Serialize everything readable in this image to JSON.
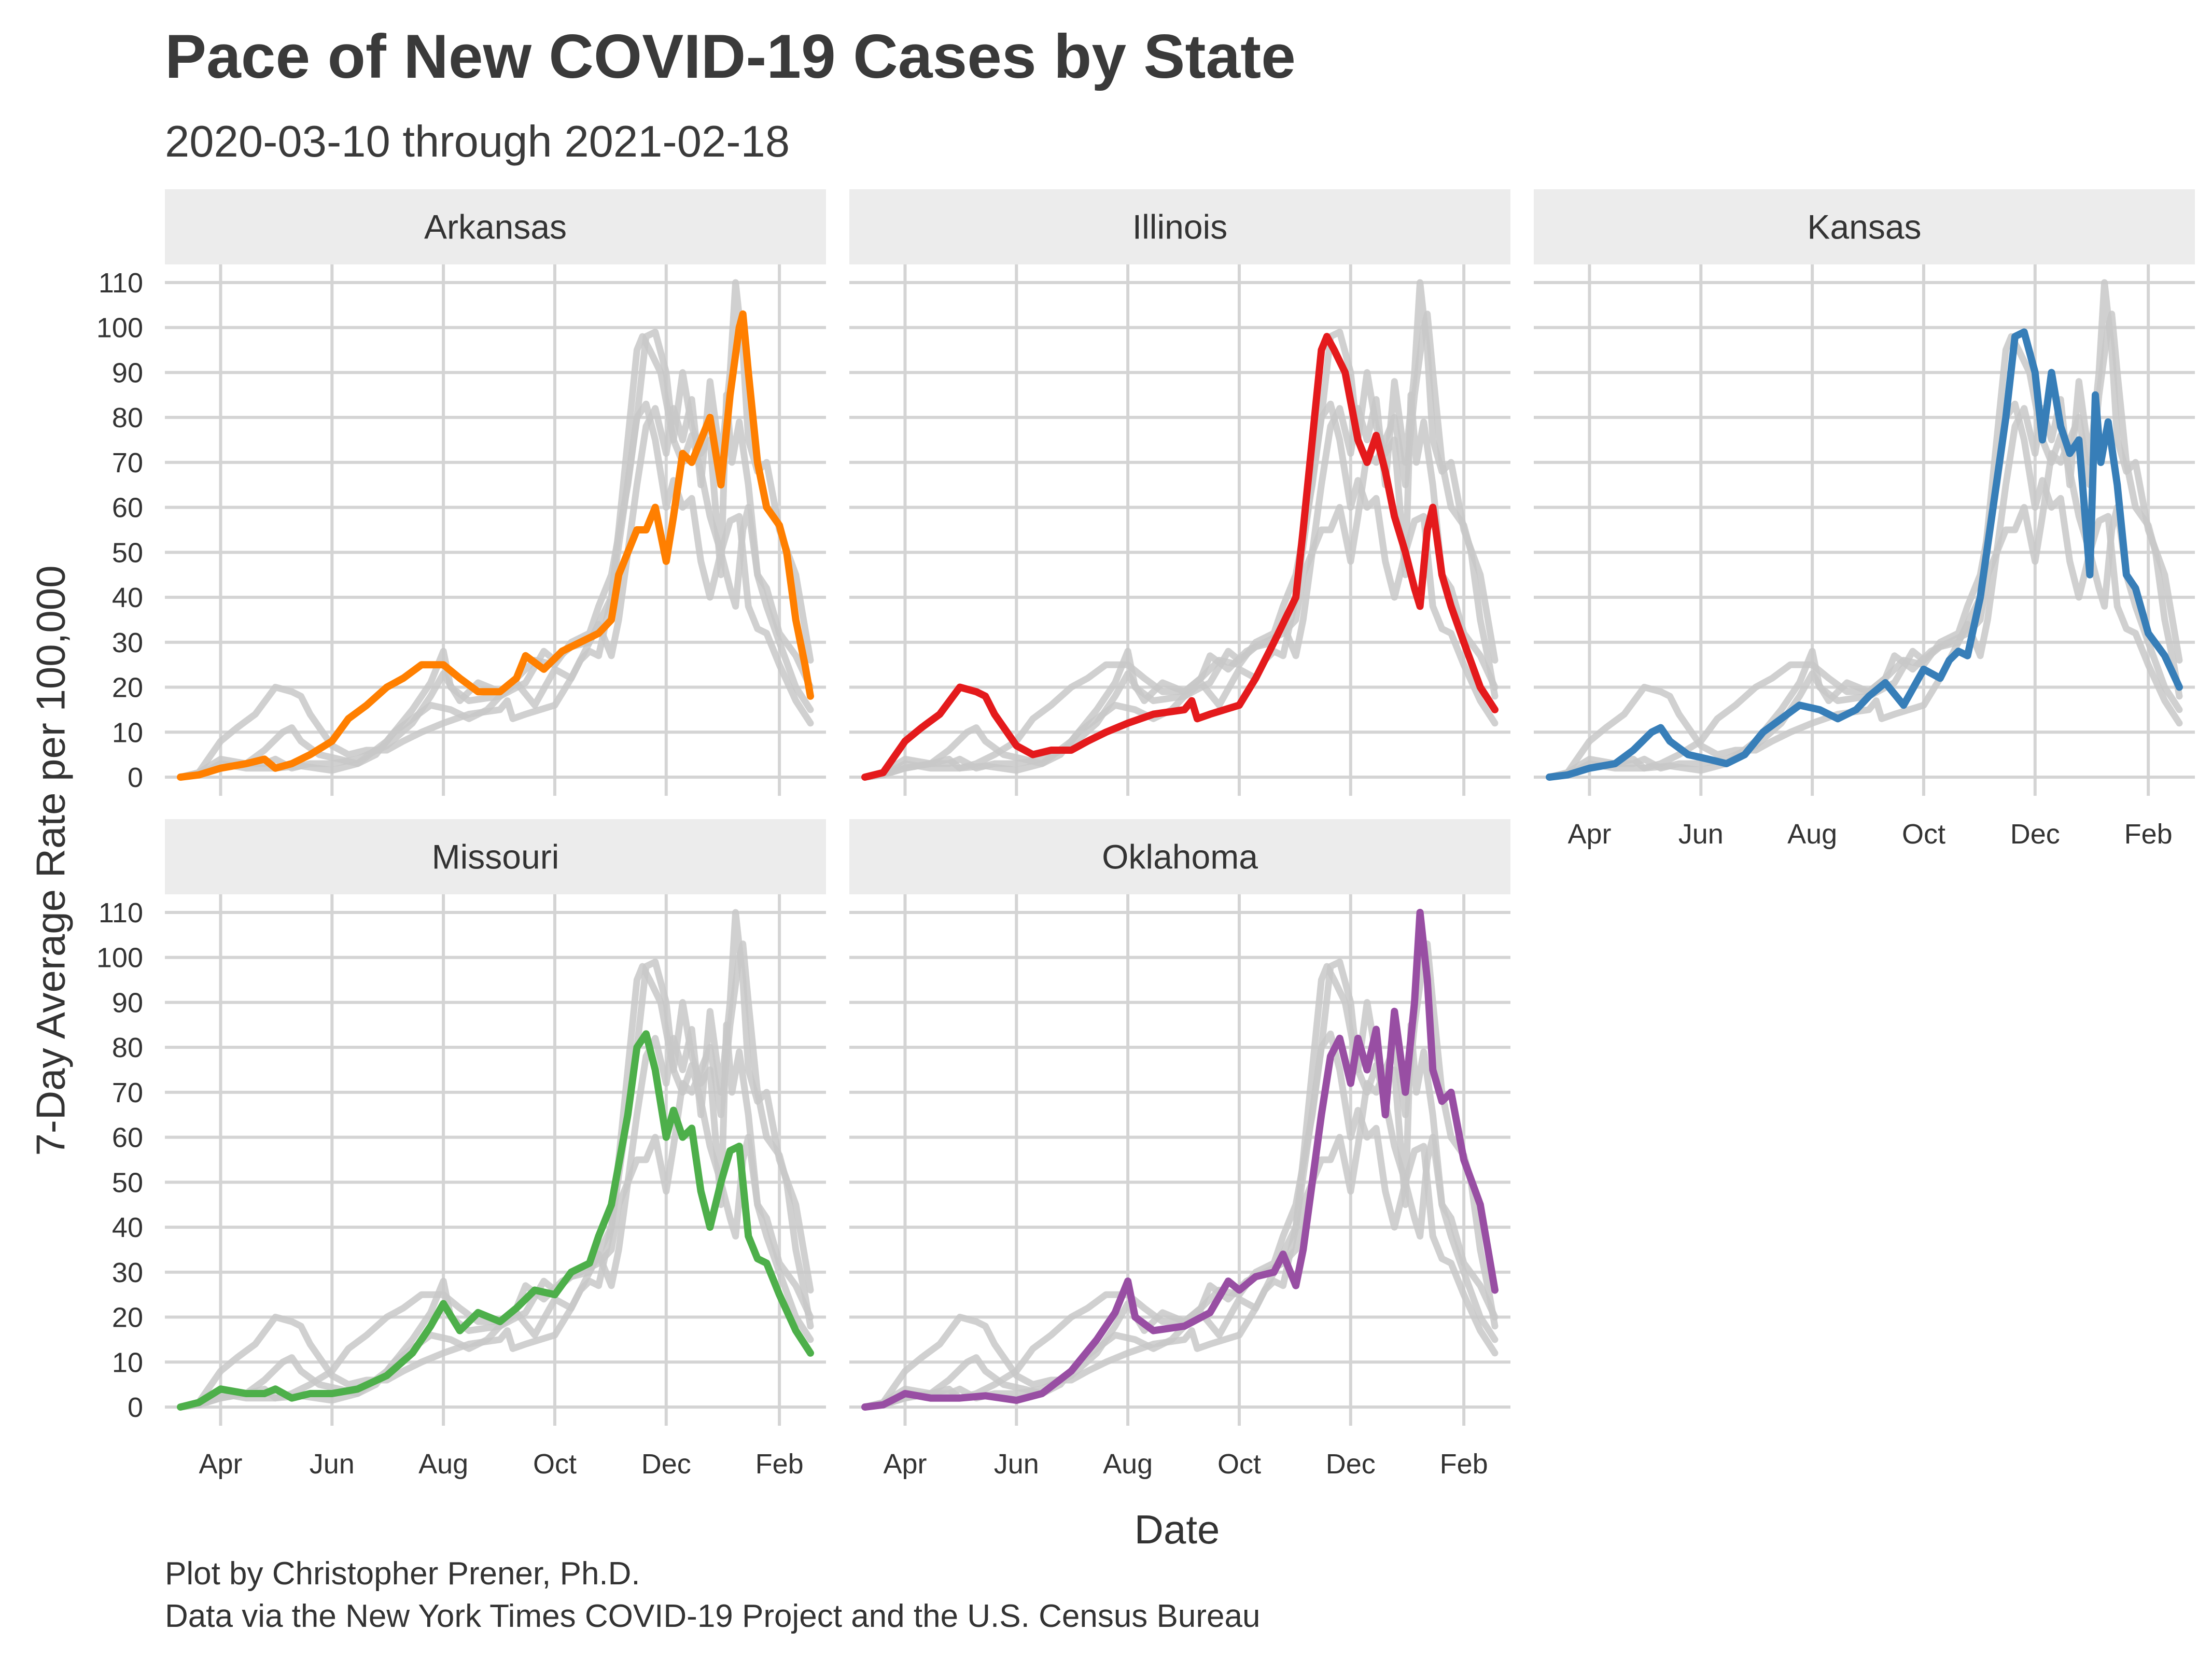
{
  "chart_data": {
    "type": "line",
    "title": "Pace of New COVID-19 Cases by State",
    "subtitle": "2020-03-10 through 2021-02-18",
    "xlabel": "Date",
    "ylabel": "7-Day Average Rate per 100,000",
    "caption_lines": [
      "Plot by Christopher Prener, Ph.D.",
      "Data via the New York Times COVID-19 Project and the U.S. Census Bureau"
    ],
    "x_ticks": [
      "Apr",
      "Jun",
      "Aug",
      "Oct",
      "Dec",
      "Feb"
    ],
    "x_tick_dates": [
      "2020-04-01",
      "2020-06-01",
      "2020-08-01",
      "2020-10-01",
      "2020-12-01",
      "2021-02-01"
    ],
    "xlim": [
      "2020-03-10",
      "2021-02-18"
    ],
    "y_ticks": [
      0,
      10,
      20,
      30,
      40,
      50,
      60,
      70,
      80,
      90,
      100,
      110
    ],
    "ylim": [
      0,
      110
    ],
    "grid": true,
    "facet_layout": "3 columns x 2 rows, faceted by state",
    "background_series_color": "#c8c8c8",
    "series": [
      {
        "name": "Arkansas",
        "color": "#FF7F00",
        "points": [
          [
            "2020-03-10",
            0
          ],
          [
            "2020-03-20",
            0.5
          ],
          [
            "2020-04-01",
            2
          ],
          [
            "2020-04-15",
            3
          ],
          [
            "2020-04-25",
            4
          ],
          [
            "2020-05-01",
            2
          ],
          [
            "2020-05-10",
            3
          ],
          [
            "2020-05-20",
            5
          ],
          [
            "2020-06-01",
            8
          ],
          [
            "2020-06-10",
            13
          ],
          [
            "2020-06-20",
            16
          ],
          [
            "2020-07-01",
            20
          ],
          [
            "2020-07-10",
            22
          ],
          [
            "2020-07-20",
            25
          ],
          [
            "2020-08-01",
            25
          ],
          [
            "2020-08-10",
            22
          ],
          [
            "2020-08-20",
            19
          ],
          [
            "2020-09-01",
            19
          ],
          [
            "2020-09-10",
            22
          ],
          [
            "2020-09-15",
            27
          ],
          [
            "2020-09-25",
            24
          ],
          [
            "2020-10-05",
            28
          ],
          [
            "2020-10-15",
            30
          ],
          [
            "2020-10-25",
            32
          ],
          [
            "2020-11-01",
            35
          ],
          [
            "2020-11-05",
            45
          ],
          [
            "2020-11-10",
            50
          ],
          [
            "2020-11-15",
            55
          ],
          [
            "2020-11-20",
            55
          ],
          [
            "2020-11-25",
            60
          ],
          [
            "2020-12-01",
            48
          ],
          [
            "2020-12-05",
            58
          ],
          [
            "2020-12-10",
            72
          ],
          [
            "2020-12-15",
            70
          ],
          [
            "2020-12-20",
            75
          ],
          [
            "2020-12-25",
            80
          ],
          [
            "2020-12-31",
            65
          ],
          [
            "2021-01-05",
            85
          ],
          [
            "2021-01-10",
            100
          ],
          [
            "2021-01-12",
            103
          ],
          [
            "2021-01-15",
            90
          ],
          [
            "2021-01-20",
            70
          ],
          [
            "2021-01-25",
            60
          ],
          [
            "2021-02-01",
            56
          ],
          [
            "2021-02-05",
            50
          ],
          [
            "2021-02-10",
            35
          ],
          [
            "2021-02-15",
            25
          ],
          [
            "2021-02-18",
            18
          ]
        ]
      },
      {
        "name": "Illinois",
        "color": "#E41A1C",
        "points": [
          [
            "2020-03-10",
            0
          ],
          [
            "2020-03-20",
            1
          ],
          [
            "2020-04-01",
            8
          ],
          [
            "2020-04-10",
            11
          ],
          [
            "2020-04-20",
            14
          ],
          [
            "2020-05-01",
            20
          ],
          [
            "2020-05-10",
            19
          ],
          [
            "2020-05-15",
            18
          ],
          [
            "2020-05-20",
            14
          ],
          [
            "2020-06-01",
            7
          ],
          [
            "2020-06-10",
            5
          ],
          [
            "2020-06-20",
            6
          ],
          [
            "2020-07-01",
            6
          ],
          [
            "2020-07-10",
            8
          ],
          [
            "2020-07-20",
            10
          ],
          [
            "2020-08-01",
            12
          ],
          [
            "2020-08-15",
            14
          ],
          [
            "2020-09-01",
            15
          ],
          [
            "2020-09-05",
            17
          ],
          [
            "2020-09-08",
            13
          ],
          [
            "2020-09-15",
            14
          ],
          [
            "2020-10-01",
            16
          ],
          [
            "2020-10-10",
            22
          ],
          [
            "2020-10-20",
            30
          ],
          [
            "2020-11-01",
            40
          ],
          [
            "2020-11-05",
            55
          ],
          [
            "2020-11-10",
            75
          ],
          [
            "2020-11-15",
            95
          ],
          [
            "2020-11-18",
            98
          ],
          [
            "2020-11-22",
            95
          ],
          [
            "2020-11-28",
            90
          ],
          [
            "2020-12-05",
            75
          ],
          [
            "2020-12-10",
            70
          ],
          [
            "2020-12-15",
            76
          ],
          [
            "2020-12-20",
            68
          ],
          [
            "2020-12-25",
            58
          ],
          [
            "2020-12-31",
            50
          ],
          [
            "2021-01-05",
            42
          ],
          [
            "2021-01-08",
            38
          ],
          [
            "2021-01-12",
            55
          ],
          [
            "2021-01-15",
            60
          ],
          [
            "2021-01-20",
            45
          ],
          [
            "2021-01-25",
            38
          ],
          [
            "2021-02-01",
            30
          ],
          [
            "2021-02-10",
            20
          ],
          [
            "2021-02-18",
            15
          ]
        ]
      },
      {
        "name": "Kansas",
        "color": "#377EB8",
        "points": [
          [
            "2020-03-10",
            0
          ],
          [
            "2020-03-20",
            0.5
          ],
          [
            "2020-04-01",
            2
          ],
          [
            "2020-04-15",
            3
          ],
          [
            "2020-04-25",
            6
          ],
          [
            "2020-05-05",
            10
          ],
          [
            "2020-05-10",
            11
          ],
          [
            "2020-05-15",
            8
          ],
          [
            "2020-05-25",
            5
          ],
          [
            "2020-06-05",
            4
          ],
          [
            "2020-06-15",
            3
          ],
          [
            "2020-06-25",
            5
          ],
          [
            "2020-07-05",
            10
          ],
          [
            "2020-07-15",
            13
          ],
          [
            "2020-07-25",
            16
          ],
          [
            "2020-08-05",
            15
          ],
          [
            "2020-08-15",
            13
          ],
          [
            "2020-08-25",
            15
          ],
          [
            "2020-09-01",
            18
          ],
          [
            "2020-09-10",
            21
          ],
          [
            "2020-09-20",
            16
          ],
          [
            "2020-10-01",
            24
          ],
          [
            "2020-10-10",
            22
          ],
          [
            "2020-10-15",
            26
          ],
          [
            "2020-10-20",
            28
          ],
          [
            "2020-10-25",
            27
          ],
          [
            "2020-11-01",
            40
          ],
          [
            "2020-11-08",
            60
          ],
          [
            "2020-11-15",
            80
          ],
          [
            "2020-11-20",
            98
          ],
          [
            "2020-11-25",
            99
          ],
          [
            "2020-12-01",
            90
          ],
          [
            "2020-12-05",
            75
          ],
          [
            "2020-12-10",
            90
          ],
          [
            "2020-12-15",
            78
          ],
          [
            "2020-12-20",
            72
          ],
          [
            "2020-12-25",
            75
          ],
          [
            "2020-12-31",
            45
          ],
          [
            "2021-01-03",
            85
          ],
          [
            "2021-01-06",
            70
          ],
          [
            "2021-01-10",
            79
          ],
          [
            "2021-01-15",
            65
          ],
          [
            "2021-01-20",
            45
          ],
          [
            "2021-01-25",
            42
          ],
          [
            "2021-02-01",
            32
          ],
          [
            "2021-02-10",
            27
          ],
          [
            "2021-02-18",
            20
          ]
        ]
      },
      {
        "name": "Missouri",
        "color": "#4DAF4A",
        "points": [
          [
            "2020-03-10",
            0
          ],
          [
            "2020-03-20",
            1
          ],
          [
            "2020-04-01",
            4
          ],
          [
            "2020-04-15",
            3
          ],
          [
            "2020-04-25",
            3
          ],
          [
            "2020-05-01",
            4
          ],
          [
            "2020-05-10",
            2
          ],
          [
            "2020-05-20",
            3
          ],
          [
            "2020-06-01",
            3
          ],
          [
            "2020-06-15",
            4
          ],
          [
            "2020-07-01",
            7
          ],
          [
            "2020-07-15",
            12
          ],
          [
            "2020-07-25",
            18
          ],
          [
            "2020-08-01",
            23
          ],
          [
            "2020-08-10",
            17
          ],
          [
            "2020-08-20",
            21
          ],
          [
            "2020-09-01",
            19
          ],
          [
            "2020-09-10",
            22
          ],
          [
            "2020-09-20",
            26
          ],
          [
            "2020-10-01",
            25
          ],
          [
            "2020-10-10",
            30
          ],
          [
            "2020-10-20",
            32
          ],
          [
            "2020-10-25",
            38
          ],
          [
            "2020-11-01",
            45
          ],
          [
            "2020-11-10",
            65
          ],
          [
            "2020-11-15",
            80
          ],
          [
            "2020-11-20",
            83
          ],
          [
            "2020-11-25",
            75
          ],
          [
            "2020-12-01",
            60
          ],
          [
            "2020-12-05",
            66
          ],
          [
            "2020-12-10",
            60
          ],
          [
            "2020-12-15",
            62
          ],
          [
            "2020-12-20",
            48
          ],
          [
            "2020-12-25",
            40
          ],
          [
            "2020-12-31",
            50
          ],
          [
            "2021-01-05",
            57
          ],
          [
            "2021-01-10",
            58
          ],
          [
            "2021-01-15",
            38
          ],
          [
            "2021-01-20",
            33
          ],
          [
            "2021-01-25",
            32
          ],
          [
            "2021-02-01",
            25
          ],
          [
            "2021-02-10",
            17
          ],
          [
            "2021-02-18",
            12
          ]
        ]
      },
      {
        "name": "Oklahoma",
        "color": "#984EA3",
        "points": [
          [
            "2020-03-10",
            0
          ],
          [
            "2020-03-20",
            0.5
          ],
          [
            "2020-04-01",
            3
          ],
          [
            "2020-04-15",
            2
          ],
          [
            "2020-05-01",
            2
          ],
          [
            "2020-05-15",
            2.5
          ],
          [
            "2020-06-01",
            1.5
          ],
          [
            "2020-06-15",
            3
          ],
          [
            "2020-07-01",
            8
          ],
          [
            "2020-07-15",
            15
          ],
          [
            "2020-07-25",
            21
          ],
          [
            "2020-08-01",
            28
          ],
          [
            "2020-08-05",
            20
          ],
          [
            "2020-08-15",
            17
          ],
          [
            "2020-09-01",
            18
          ],
          [
            "2020-09-15",
            21
          ],
          [
            "2020-09-25",
            28
          ],
          [
            "2020-10-01",
            26
          ],
          [
            "2020-10-10",
            29
          ],
          [
            "2020-10-20",
            30
          ],
          [
            "2020-10-25",
            34
          ],
          [
            "2020-11-01",
            27
          ],
          [
            "2020-11-05",
            35
          ],
          [
            "2020-11-10",
            50
          ],
          [
            "2020-11-15",
            65
          ],
          [
            "2020-11-20",
            78
          ],
          [
            "2020-11-25",
            82
          ],
          [
            "2020-12-01",
            72
          ],
          [
            "2020-12-05",
            82
          ],
          [
            "2020-12-10",
            75
          ],
          [
            "2020-12-15",
            84
          ],
          [
            "2020-12-20",
            65
          ],
          [
            "2020-12-25",
            88
          ],
          [
            "2020-12-31",
            70
          ],
          [
            "2021-01-05",
            90
          ],
          [
            "2021-01-08",
            110
          ],
          [
            "2021-01-12",
            95
          ],
          [
            "2021-01-15",
            75
          ],
          [
            "2021-01-20",
            68
          ],
          [
            "2021-01-25",
            70
          ],
          [
            "2021-02-01",
            55
          ],
          [
            "2021-02-10",
            45
          ],
          [
            "2021-02-18",
            26
          ]
        ]
      }
    ]
  }
}
